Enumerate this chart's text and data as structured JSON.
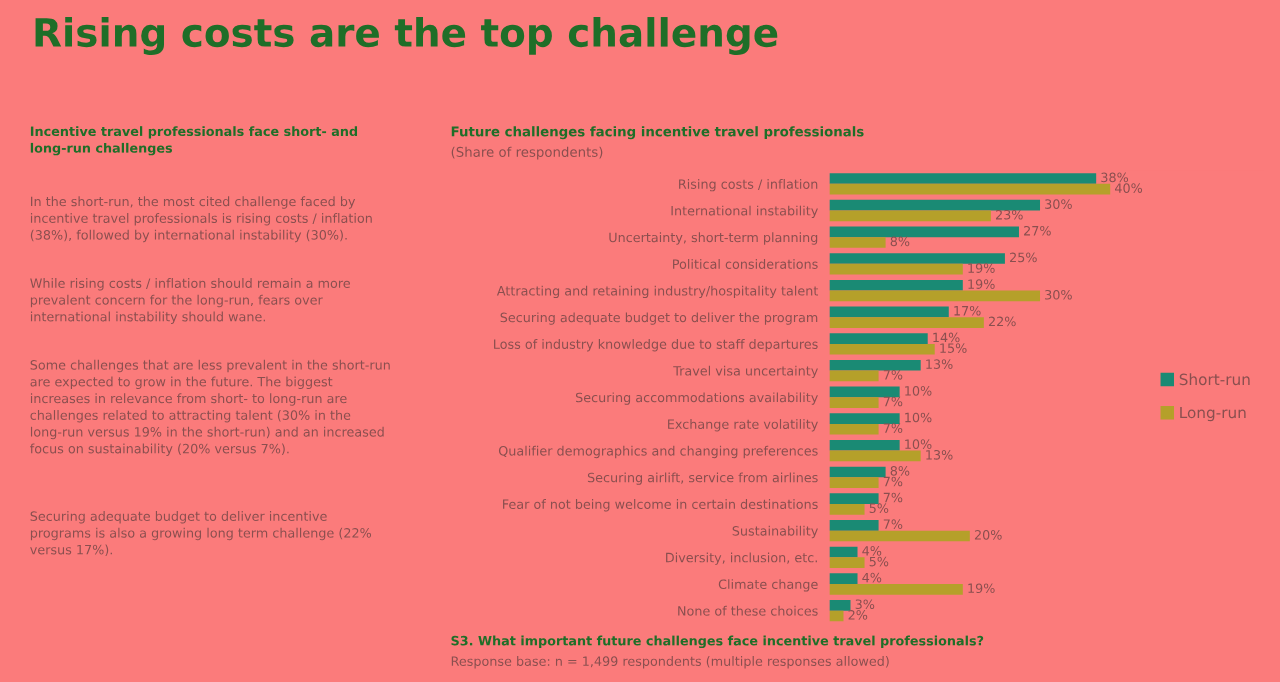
{
  "chart_data": [
    {
      "type": "other",
      "title": "Rising costs are the top challenge",
      "subtitle": "Incentive travel professionals face short- and long-run challenges",
      "annotations": [
        "In the short-run, the most cited challenge faced by incentive travel professionals is rising costs / inflation (38%), followed by international instability (30%).",
        "While rising costs / inflation should remain a more prevalent concern for the long-run, fears over international instability should wane.",
        "Some challenges that are less prevalent in the short-run are expected to grow in the future. The biggest increases in relevance from short- to long-run are challenges related to attracting talent (30% in the long-run versus 19% in the short-run) and an increased focus on sustainability (20% versus 7%).",
        "Securing adequate budget to deliver incentive programs is also a growing long term challenge (22% versus 17%)."
      ]
    },
    {
      "type": "bar",
      "orientation": "horizontal",
      "title": "Future challenges facing incentive travel professionals",
      "subtitle": "(Share of respondents)",
      "categories": [
        "Rising costs / inflation",
        "International instability",
        "Uncertainty, short-term planning",
        "Political considerations",
        "Attracting and retaining industry/hospitality talent",
        "Securing adequate budget to deliver the program",
        "Loss of industry knowledge due to staff departures",
        "Travel visa uncertainty",
        "Securing accommodations availability",
        "Exchange rate volatility",
        "Qualifier demographics and changing preferences",
        "Securing airlift, service from airlines",
        "Fear of not being welcome in certain destinations",
        "Sustainability",
        "Diversity, inclusion, etc.",
        "Climate change",
        "None of these choices"
      ],
      "series": [
        {
          "name": "Short-run",
          "color": "#1a8a74",
          "values": [
            38,
            30,
            27,
            25,
            19,
            17,
            14,
            13,
            10,
            10,
            10,
            8,
            7,
            7,
            4,
            4,
            3
          ],
          "value_labels": [
            "38%",
            "30%",
            "27%",
            "25%",
            "19%",
            "17%",
            "14%",
            "13%",
            "10%",
            "10%",
            "10%",
            "8%",
            "7%",
            "7%",
            "4%",
            "4%",
            "3%"
          ]
        },
        {
          "name": "Long-run",
          "color": "#b5a02a",
          "values": [
            40,
            23,
            8,
            19,
            30,
            22,
            15,
            7,
            7,
            7,
            13,
            7,
            5,
            20,
            5,
            19,
            2
          ],
          "value_labels": [
            "40%",
            "23%",
            "8%",
            "19%",
            "30%",
            "22%",
            "15%",
            "7%",
            "7%",
            "7%",
            "13%",
            "7%",
            "5%",
            "20%",
            "5%",
            "19%",
            "2%"
          ]
        }
      ],
      "legend": "right",
      "annotations": [
        "S3. What important future challenges face incentive travel professionals?",
        "Response base: n = 1,499 respondents (multiple responses allowed)"
      ]
    }
  ]
}
